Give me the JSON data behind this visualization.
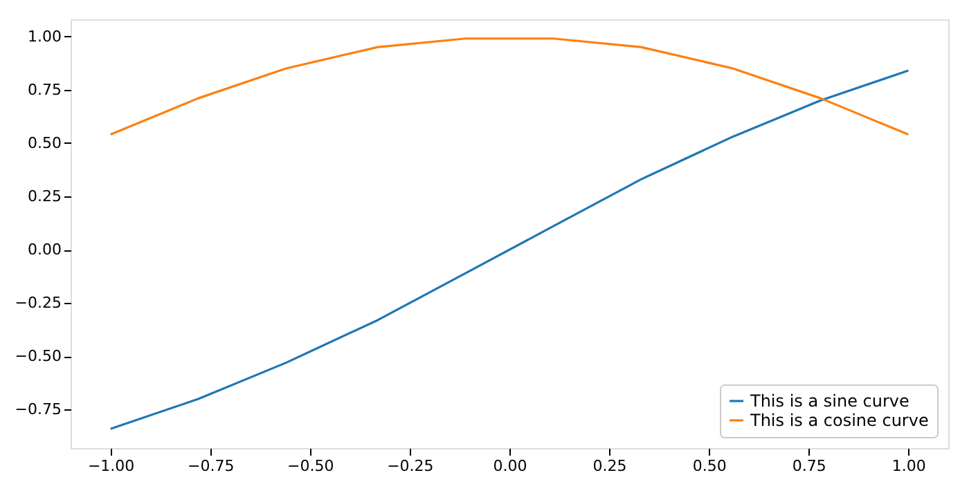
{
  "chart_data": {
    "type": "line",
    "x": [
      -1,
      -0.78,
      -0.56,
      -0.33,
      -0.11,
      0.11,
      0.33,
      0.56,
      0.78,
      1
    ],
    "series": [
      {
        "name": "This is a sine curve",
        "color": "#1f77b4",
        "values": [
          -0.84,
          -0.7,
          -0.53,
          -0.33,
          -0.11,
          0.11,
          0.33,
          0.53,
          0.7,
          0.84
        ]
      },
      {
        "name": "This is a cosine curve",
        "color": "#ff7f0e",
        "values": [
          0.54,
          0.71,
          0.85,
          0.95,
          0.99,
          0.99,
          0.95,
          0.85,
          0.71,
          0.54
        ]
      }
    ],
    "xlim": [
      -1.1,
      1.1
    ],
    "ylim": [
      -0.93,
      1.08
    ],
    "xticks": [
      {
        "value": -1,
        "label": "−1.00"
      },
      {
        "value": -0.75,
        "label": "−0.75"
      },
      {
        "value": -0.5,
        "label": "−0.50"
      },
      {
        "value": -0.25,
        "label": "−0.25"
      },
      {
        "value": 0,
        "label": "0.00"
      },
      {
        "value": 0.25,
        "label": "0.25"
      },
      {
        "value": 0.5,
        "label": "0.50"
      },
      {
        "value": 0.75,
        "label": "0.75"
      },
      {
        "value": 1,
        "label": "1.00"
      }
    ],
    "yticks": [
      {
        "value": -0.75,
        "label": "−0.75"
      },
      {
        "value": -0.5,
        "label": "−0.50"
      },
      {
        "value": -0.25,
        "label": "−0.25"
      },
      {
        "value": 0,
        "label": "0.00"
      },
      {
        "value": 0.25,
        "label": "0.25"
      },
      {
        "value": 0.5,
        "label": "0.50"
      },
      {
        "value": 0.75,
        "label": "0.75"
      },
      {
        "value": 1,
        "label": "1.00"
      }
    ],
    "grid": false,
    "legend": "bottom right",
    "marker": "none",
    "line_style": "solid"
  }
}
